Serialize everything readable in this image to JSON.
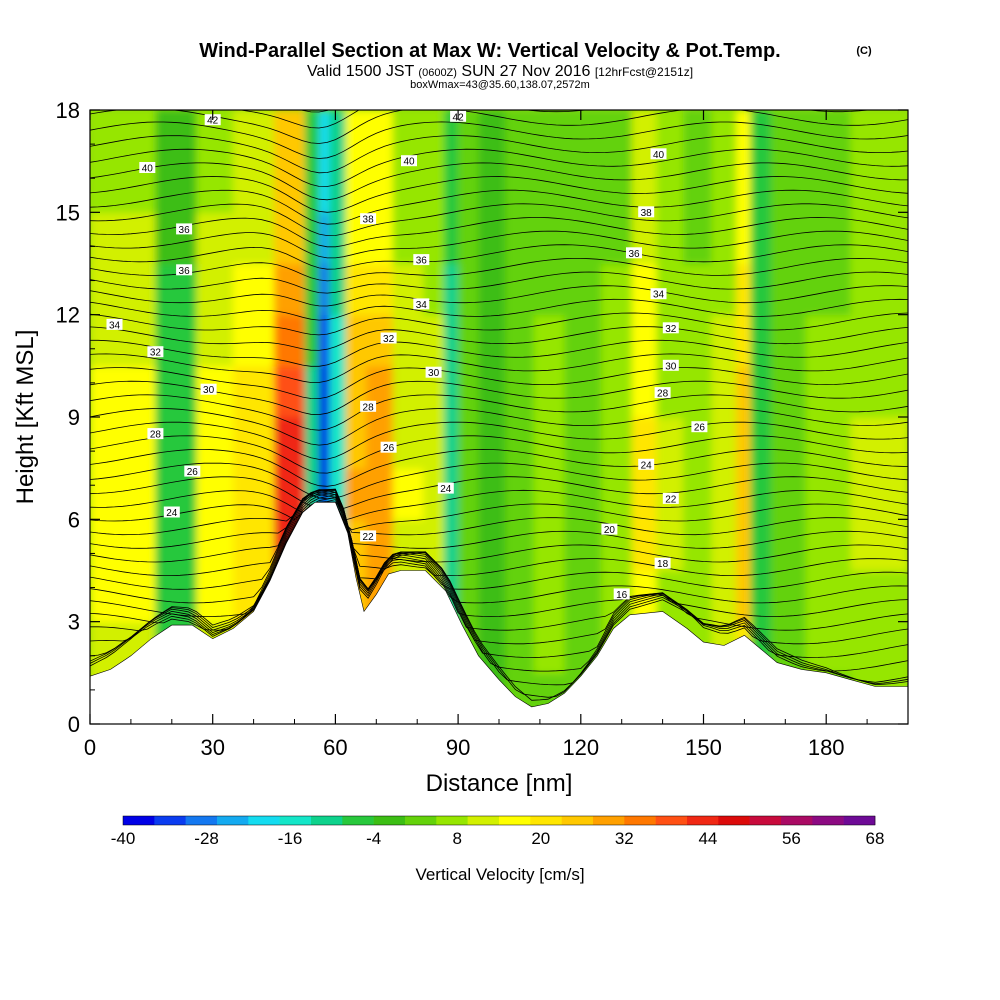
{
  "header": {
    "title": "Wind-Parallel Section at Max W: Vertical Velocity & Pot.Temp.",
    "copyright": "(C)",
    "valid_prefix": "Valid 1500 JST",
    "valid_utc": "(0600Z)",
    "valid_date": "SUN 27 Nov 2016",
    "forecast": "[12hrFcst@2151z]",
    "boxinfo": "boxWmax=43@35.60,138.07,2572m"
  },
  "chart_data": {
    "type": "heatmap",
    "title": "Wind-Parallel Section at Max W: Vertical Velocity & Pot.Temp.",
    "xlabel": "Distance [nm]",
    "ylabel": "Height [Kft MSL]",
    "xlim": [
      0,
      200
    ],
    "ylim": [
      0,
      18
    ],
    "xticks": [
      0,
      30,
      60,
      90,
      120,
      150,
      180
    ],
    "yticks": [
      0,
      3,
      6,
      9,
      12,
      15,
      18
    ],
    "colorbar": {
      "label": "Vertical Velocity [cm/s]",
      "range": [
        -40,
        68
      ],
      "tick_labels": [
        "-40",
        "-28",
        "-16",
        "-4",
        "8",
        "20",
        "32",
        "44",
        "56",
        "68"
      ],
      "colors": [
        "#0000e6",
        "#0a3cf0",
        "#1478f0",
        "#14aaf0",
        "#14dcf0",
        "#14e6c8",
        "#0ed28c",
        "#28c83c",
        "#3cbe14",
        "#64d20a",
        "#96e600",
        "#d2f000",
        "#ffff00",
        "#ffe600",
        "#ffc800",
        "#ffa000",
        "#ff7800",
        "#ff5014",
        "#f02814",
        "#dc0a0a",
        "#c80a3c",
        "#aa0a64",
        "#8c0a82",
        "#6e0a96"
      ]
    },
    "terrain_heights_kft": [
      [
        0,
        1.4
      ],
      [
        5,
        1.6
      ],
      [
        10,
        2.0
      ],
      [
        15,
        2.5
      ],
      [
        20,
        2.9
      ],
      [
        25,
        2.9
      ],
      [
        30,
        2.5
      ],
      [
        35,
        2.8
      ],
      [
        40,
        3.3
      ],
      [
        44,
        4.2
      ],
      [
        48,
        5.3
      ],
      [
        52,
        6.2
      ],
      [
        55,
        6.5
      ],
      [
        60,
        6.5
      ],
      [
        63,
        5.6
      ],
      [
        65,
        4.3
      ],
      [
        67,
        3.3
      ],
      [
        70,
        3.8
      ],
      [
        73,
        4.4
      ],
      [
        76,
        4.5
      ],
      [
        82,
        4.5
      ],
      [
        87,
        3.9
      ],
      [
        91,
        2.9
      ],
      [
        95,
        2.0
      ],
      [
        100,
        1.3
      ],
      [
        104,
        0.8
      ],
      [
        108,
        0.5
      ],
      [
        112,
        0.6
      ],
      [
        116,
        0.9
      ],
      [
        120,
        1.4
      ],
      [
        124,
        2.0
      ],
      [
        128,
        2.8
      ],
      [
        132,
        3.2
      ],
      [
        140,
        3.3
      ],
      [
        146,
        2.8
      ],
      [
        150,
        2.4
      ],
      [
        155,
        2.3
      ],
      [
        160,
        2.6
      ],
      [
        164,
        2.2
      ],
      [
        168,
        1.8
      ],
      [
        174,
        1.6
      ],
      [
        180,
        1.5
      ],
      [
        186,
        1.3
      ],
      [
        192,
        1.1
      ],
      [
        200,
        1.1
      ]
    ],
    "w_columns": [
      {
        "x": 10,
        "w": 16
      },
      {
        "x": 22,
        "w": -6
      },
      {
        "x": 30,
        "w": 16
      },
      {
        "x": 40,
        "w": 22
      },
      {
        "x": 50,
        "w": 42
      },
      {
        "x": 55,
        "w": -10
      },
      {
        "x": 57,
        "w": -40
      },
      {
        "x": 60,
        "w": -16
      },
      {
        "x": 65,
        "w": 28
      },
      {
        "x": 70,
        "w": 30
      },
      {
        "x": 78,
        "w": 14
      },
      {
        "x": 85,
        "w": 12
      },
      {
        "x": 88,
        "w": -12
      },
      {
        "x": 92,
        "w": 2
      },
      {
        "x": 98,
        "w": -4
      },
      {
        "x": 105,
        "w": 4
      },
      {
        "x": 112,
        "w": 6
      },
      {
        "x": 120,
        "w": 4
      },
      {
        "x": 130,
        "w": 8
      },
      {
        "x": 135,
        "w": 20
      },
      {
        "x": 142,
        "w": 10
      },
      {
        "x": 148,
        "w": 8
      },
      {
        "x": 156,
        "w": 12
      },
      {
        "x": 160,
        "w": 26
      },
      {
        "x": 163,
        "w": -8
      },
      {
        "x": 170,
        "w": 4
      },
      {
        "x": 180,
        "w": 6
      },
      {
        "x": 192,
        "w": 10
      }
    ],
    "theta_contours": [
      {
        "value": "16",
        "label_x": 130,
        "label_y": 3.8
      },
      {
        "value": "18",
        "label_x": 140,
        "label_y": 4.7
      },
      {
        "value": "20",
        "label_x": 127,
        "label_y": 5.7
      },
      {
        "value": "22",
        "label_x": 142,
        "label_y": 6.6
      },
      {
        "value": "22",
        "label_x": 68,
        "label_y": 5.5
      },
      {
        "value": "24",
        "label_x": 20,
        "label_y": 6.2
      },
      {
        "value": "24",
        "label_x": 87,
        "label_y": 6.9
      },
      {
        "value": "24",
        "label_x": 136,
        "label_y": 7.6
      },
      {
        "value": "26",
        "label_x": 25,
        "label_y": 7.4
      },
      {
        "value": "26",
        "label_x": 73,
        "label_y": 8.1
      },
      {
        "value": "26",
        "label_x": 149,
        "label_y": 8.7
      },
      {
        "value": "28",
        "label_x": 16,
        "label_y": 8.5
      },
      {
        "value": "28",
        "label_x": 68,
        "label_y": 9.3
      },
      {
        "value": "28",
        "label_x": 140,
        "label_y": 9.7
      },
      {
        "value": "30",
        "label_x": 29,
        "label_y": 9.8
      },
      {
        "value": "30",
        "label_x": 84,
        "label_y": 10.3
      },
      {
        "value": "30",
        "label_x": 142,
        "label_y": 10.5
      },
      {
        "value": "32",
        "label_x": 16,
        "label_y": 10.9
      },
      {
        "value": "32",
        "label_x": 73,
        "label_y": 11.3
      },
      {
        "value": "32",
        "label_x": 142,
        "label_y": 11.6
      },
      {
        "value": "34",
        "label_x": 6,
        "label_y": 11.7
      },
      {
        "value": "34",
        "label_x": 81,
        "label_y": 12.3
      },
      {
        "value": "34",
        "label_x": 139,
        "label_y": 12.6
      },
      {
        "value": "36",
        "label_x": 23,
        "label_y": 13.3
      },
      {
        "value": "36",
        "label_x": 81,
        "label_y": 13.6
      },
      {
        "value": "36",
        "label_x": 133,
        "label_y": 13.8
      },
      {
        "value": "36",
        "label_x": 23,
        "label_y": 14.5
      },
      {
        "value": "38",
        "label_x": 68,
        "label_y": 14.8
      },
      {
        "value": "38",
        "label_x": 136,
        "label_y": 15.0
      },
      {
        "value": "40",
        "label_x": 14,
        "label_y": 16.3
      },
      {
        "value": "40",
        "label_x": 78,
        "label_y": 16.5
      },
      {
        "value": "40",
        "label_x": 139,
        "label_y": 16.7
      },
      {
        "value": "42",
        "label_x": 30,
        "label_y": 17.7
      },
      {
        "value": "42",
        "label_x": 90,
        "label_y": 17.8
      }
    ]
  }
}
